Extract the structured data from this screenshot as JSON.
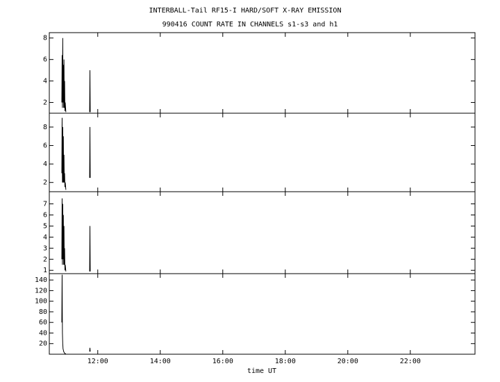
{
  "chart_data": [
    {
      "type": "line",
      "title": "INTERBALL-Tail RF15-I HARD/SOFT X-RAY EMISSION",
      "subtitle": "990416  COUNT RATE IN CHANNELS s1-s3 and h1",
      "x": [
        10.85,
        10.86,
        10.87,
        10.88,
        10.89,
        10.9,
        10.91,
        10.92,
        10.93,
        10.94,
        10.95,
        10.96,
        10.98,
        11.5,
        11.74,
        11.75,
        11.76
      ],
      "values": [
        2,
        6.4,
        1.5,
        8,
        2,
        5.5,
        1.5,
        6,
        1.5,
        4,
        1.2,
        2,
        1.1,
        null,
        1.1,
        5,
        1.1
      ],
      "color": "#000000",
      "xlim": [
        10.45,
        24.07
      ],
      "ylim": [
        1,
        8.5
      ],
      "yticks": [
        2,
        4,
        6,
        8
      ]
    },
    {
      "type": "line",
      "x": [
        10.85,
        10.86,
        10.87,
        10.88,
        10.89,
        10.9,
        10.91,
        10.92,
        10.93,
        10.94,
        10.95,
        10.96,
        10.98,
        11.5,
        11.74,
        11.75,
        11.76
      ],
      "values": [
        3,
        9,
        2,
        8,
        2,
        7,
        2,
        5,
        2,
        3,
        1.5,
        2,
        1.2,
        null,
        2.5,
        8,
        2.5
      ],
      "color": "#000000",
      "xlim": [
        10.45,
        24.07
      ],
      "ylim": [
        1,
        9.5
      ],
      "yticks": [
        2,
        4,
        6,
        8
      ]
    },
    {
      "type": "line",
      "x": [
        10.85,
        10.86,
        10.87,
        10.88,
        10.89,
        10.9,
        10.91,
        10.92,
        10.93,
        10.94,
        10.95,
        10.96,
        10.98,
        11.5,
        11.74,
        11.75,
        11.76
      ],
      "values": [
        2,
        7.5,
        1.5,
        7,
        2,
        6,
        1.5,
        5,
        1.5,
        3,
        1,
        1.5,
        0.9,
        null,
        0.9,
        5,
        0.9
      ],
      "color": "#000000",
      "xlim": [
        10.45,
        24.07
      ],
      "ylim": [
        0.7,
        8.1
      ],
      "yticks": [
        1,
        2,
        3,
        4,
        5,
        6,
        7
      ]
    },
    {
      "type": "line",
      "x_label": "time UT",
      "x": [
        10.85,
        10.86,
        10.87,
        10.88,
        10.89,
        10.9,
        10.91,
        10.92,
        10.93,
        10.94,
        10.95,
        10.96,
        10.98,
        11.5,
        11.74,
        11.75,
        11.76
      ],
      "values": [
        60,
        150,
        40,
        20,
        10,
        8,
        5,
        4,
        3,
        2,
        1,
        1,
        1,
        null,
        5,
        12,
        5
      ],
      "color": "#000000",
      "xlim": [
        10.45,
        24.07
      ],
      "ylim": [
        0,
        152
      ],
      "yticks": [
        20,
        40,
        60,
        80,
        100,
        120,
        140
      ],
      "xticks": [
        {
          "value": 12,
          "label": "12:00"
        },
        {
          "value": 14,
          "label": "14:00"
        },
        {
          "value": 16,
          "label": "16:00"
        },
        {
          "value": 18,
          "label": "18:00"
        },
        {
          "value": 20,
          "label": "20:00"
        },
        {
          "value": 22,
          "label": "22:00"
        }
      ]
    }
  ]
}
